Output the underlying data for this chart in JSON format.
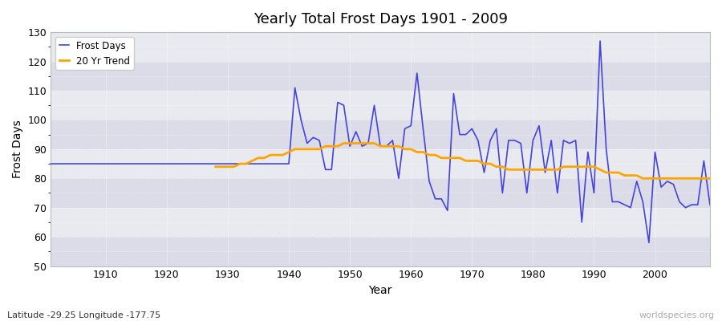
{
  "title": "Yearly Total Frost Days 1901 - 2009",
  "xlabel": "Year",
  "ylabel": "Frost Days",
  "subtitle": "Latitude -29.25 Longitude -177.75",
  "watermark": "worldspecies.org",
  "ylim": [
    50,
    130
  ],
  "xlim": [
    1901,
    2009
  ],
  "yticks": [
    50,
    60,
    70,
    80,
    90,
    100,
    110,
    120,
    130
  ],
  "xticks": [
    1910,
    1920,
    1930,
    1940,
    1950,
    1960,
    1970,
    1980,
    1990,
    2000
  ],
  "frost_color": "#4444dd",
  "trend_color": "#FFA500",
  "plot_bg": "#e8eaf0",
  "fig_bg": "#ffffff",
  "band_colors": [
    "#dcdce8",
    "#e8eaf0"
  ],
  "legend_frost": "Frost Days",
  "legend_trend": "20 Yr Trend",
  "years": [
    1901,
    1902,
    1903,
    1904,
    1905,
    1906,
    1907,
    1908,
    1909,
    1910,
    1911,
    1912,
    1913,
    1914,
    1915,
    1916,
    1917,
    1918,
    1919,
    1920,
    1921,
    1922,
    1923,
    1924,
    1925,
    1926,
    1927,
    1928,
    1929,
    1930,
    1931,
    1932,
    1933,
    1934,
    1935,
    1936,
    1937,
    1938,
    1939,
    1940,
    1941,
    1942,
    1943,
    1944,
    1945,
    1946,
    1947,
    1948,
    1949,
    1950,
    1951,
    1952,
    1953,
    1954,
    1955,
    1956,
    1957,
    1958,
    1959,
    1960,
    1961,
    1962,
    1963,
    1964,
    1965,
    1966,
    1967,
    1968,
    1969,
    1970,
    1971,
    1972,
    1973,
    1974,
    1975,
    1976,
    1977,
    1978,
    1979,
    1980,
    1981,
    1982,
    1983,
    1984,
    1985,
    1986,
    1987,
    1988,
    1989,
    1990,
    1991,
    1992,
    1993,
    1994,
    1995,
    1996,
    1997,
    1998,
    1999,
    2000,
    2001,
    2002,
    2003,
    2004,
    2005,
    2006,
    2007,
    2008,
    2009
  ],
  "frost_days": [
    85,
    85,
    85,
    85,
    85,
    85,
    85,
    85,
    85,
    85,
    85,
    85,
    85,
    85,
    85,
    85,
    85,
    85,
    85,
    85,
    85,
    85,
    85,
    85,
    85,
    85,
    85,
    85,
    85,
    85,
    85,
    85,
    85,
    85,
    85,
    85,
    85,
    85,
    85,
    85,
    111,
    100,
    92,
    94,
    93,
    83,
    83,
    106,
    105,
    91,
    96,
    91,
    92,
    105,
    91,
    91,
    93,
    80,
    97,
    98,
    116,
    97,
    79,
    73,
    73,
    69,
    109,
    95,
    95,
    97,
    93,
    82,
    93,
    97,
    75,
    93,
    93,
    92,
    75,
    93,
    98,
    82,
    93,
    75,
    93,
    92,
    93,
    65,
    89,
    75,
    127,
    90,
    72,
    72,
    71,
    70,
    79,
    72,
    58,
    89,
    77,
    79,
    78,
    72,
    70,
    71,
    71,
    86,
    71
  ],
  "trend_years": [
    1928,
    1929,
    1930,
    1931,
    1932,
    1933,
    1934,
    1935,
    1936,
    1937,
    1938,
    1939,
    1940,
    1941,
    1942,
    1943,
    1944,
    1945,
    1946,
    1947,
    1948,
    1949,
    1950,
    1951,
    1952,
    1953,
    1954,
    1955,
    1956,
    1957,
    1958,
    1959,
    1960,
    1961,
    1962,
    1963,
    1964,
    1965,
    1966,
    1967,
    1968,
    1969,
    1970,
    1971,
    1972,
    1973,
    1974,
    1975,
    1976,
    1977,
    1978,
    1979,
    1980,
    1981,
    1982,
    1983,
    1984,
    1985,
    1986,
    1987,
    1988,
    1989,
    1990,
    1991,
    1992,
    1993,
    1994,
    1995,
    1996,
    1997,
    1998,
    1999,
    2000,
    2001,
    2002,
    2003,
    2004,
    2005,
    2006,
    2007,
    2008,
    2009
  ],
  "trend_vals": [
    84,
    84,
    84,
    84,
    85,
    85,
    86,
    87,
    87,
    88,
    88,
    88,
    89,
    90,
    90,
    90,
    90,
    90,
    91,
    91,
    91,
    92,
    92,
    92,
    92,
    92,
    92,
    91,
    91,
    91,
    91,
    90,
    90,
    89,
    89,
    88,
    88,
    87,
    87,
    87,
    87,
    86,
    86,
    86,
    85,
    85,
    84,
    84,
    83,
    83,
    83,
    83,
    83,
    83,
    83,
    83,
    83,
    84,
    84,
    84,
    84,
    84,
    84,
    83,
    82,
    82,
    82,
    81,
    81,
    81,
    80,
    80,
    80,
    80,
    80,
    80,
    80,
    80,
    80,
    80,
    80,
    80
  ]
}
